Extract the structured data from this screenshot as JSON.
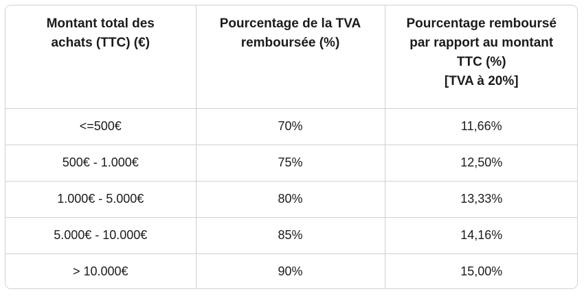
{
  "colors": {
    "background": "#ffffff",
    "border": "#d0d0d3",
    "text": "#1b1b1d"
  },
  "table": {
    "headers": [
      {
        "label": "Montant total des achats (TTC) (€)",
        "lines": [
          "Montant total des",
          "achats (TTC) (€)"
        ]
      },
      {
        "label": "Pourcentage de la TVA remboursée (%)",
        "lines": [
          "Pourcentage de la TVA",
          "remboursée (%)"
        ]
      },
      {
        "label": "Pourcentage remboursé par rapport au montant TTC (%) [TVA à 20%]",
        "lines": [
          "Pourcentage remboursé",
          "par rapport au montant",
          "TTC (%)",
          "[TVA à 20%]"
        ]
      }
    ],
    "rows": [
      {
        "amount": "<=500€",
        "tva_refund": "70%",
        "refund_vs_ttc": "11,66%"
      },
      {
        "amount": "500€ - 1.000€",
        "tva_refund": "75%",
        "refund_vs_ttc": "12,50%"
      },
      {
        "amount": "1.000€ - 5.000€",
        "tva_refund": "80%",
        "refund_vs_ttc": "13,33%"
      },
      {
        "amount": "5.000€ - 10.000€",
        "tva_refund": "85%",
        "refund_vs_ttc": "14,16%"
      },
      {
        "amount": "> 10.000€",
        "tva_refund": "90%",
        "refund_vs_ttc": "15,00%"
      }
    ]
  }
}
